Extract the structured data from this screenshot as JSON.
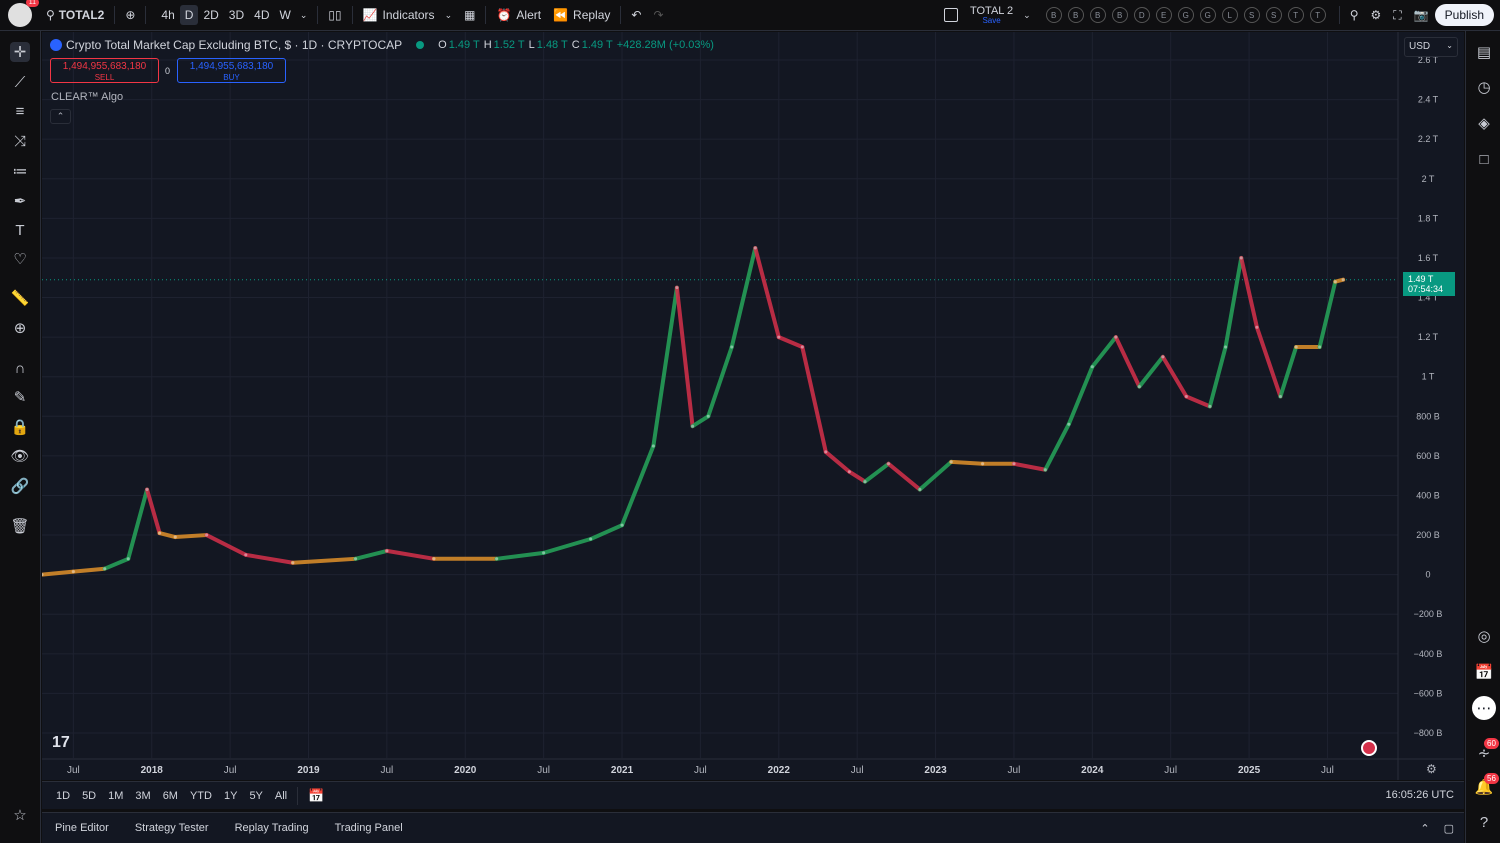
{
  "topbar": {
    "notification_count": "11",
    "symbol": "TOTAL2",
    "intervals": [
      "4h",
      "D",
      "2D",
      "3D",
      "4D",
      "W"
    ],
    "active_interval": "D",
    "indicators_label": "Indicators",
    "alert_label": "Alert",
    "replay_label": "Replay",
    "layout_name": "TOTAL 2",
    "layout_status": "Save",
    "watch_circles": [
      "B",
      "B",
      "B",
      "B",
      "D",
      "E",
      "G",
      "G",
      "L",
      "S",
      "S",
      "T",
      "T"
    ],
    "publish_label": "Publish"
  },
  "legend": {
    "title": "Crypto Total Market Cap Excluding BTC, $ · 1D · CRYPTOCAP",
    "o_label": "O",
    "o_value": "1.49 T",
    "h_label": "H",
    "h_value": "1.52 T",
    "l_label": "L",
    "l_value": "1.48 T",
    "c_label": "C",
    "c_value": "1.49 T",
    "change": "+428.28M (+0.03%)"
  },
  "trade": {
    "sell_price": "1,494,955,683,180",
    "sell_label": "SELL",
    "spread": "0",
    "buy_price": "1,494,955,683,180",
    "buy_label": "BUY"
  },
  "indicator_name": "CLEAR™ Algo",
  "currency": "USD",
  "last_price": {
    "value": "1.49 T",
    "countdown": "07:54:34"
  },
  "chart_data": {
    "type": "line",
    "title": "Crypto Total Market Cap Excluding BTC, $ · 1D · CRYPTOCAP",
    "y_unit": "USD",
    "y_ticks": [
      "2.6 T",
      "2.4 T",
      "2.2 T",
      "2 T",
      "1.8 T",
      "1.6 T",
      "1.4 T",
      "1.2 T",
      "1 T",
      "800 B",
      "600 B",
      "400 B",
      "200 B",
      "0",
      "−200 B",
      "−400 B",
      "−600 B",
      "−800 B"
    ],
    "x_ticks": [
      "Jul",
      "2018",
      "Jul",
      "2019",
      "Jul",
      "2020",
      "Jul",
      "2021",
      "Jul",
      "2022",
      "Jul",
      "2023",
      "Jul",
      "2024",
      "Jul",
      "2025",
      "Jul"
    ],
    "ylim": [
      -880000000000,
      2600000000000
    ],
    "xlim": [
      2017.3,
      2025.95
    ],
    "x": [
      2017.3,
      2017.5,
      2017.7,
      2017.85,
      2017.97,
      2018.05,
      2018.15,
      2018.35,
      2018.6,
      2018.9,
      2019.3,
      2019.5,
      2019.8,
      2020.2,
      2020.5,
      2020.8,
      2021.0,
      2021.2,
      2021.35,
      2021.45,
      2021.55,
      2021.7,
      2021.85,
      2022.0,
      2022.15,
      2022.3,
      2022.45,
      2022.55,
      2022.7,
      2022.9,
      2023.1,
      2023.3,
      2023.5,
      2023.7,
      2023.85,
      2024.0,
      2024.15,
      2024.3,
      2024.45,
      2024.6,
      2024.75,
      2024.85,
      2024.95,
      2025.05,
      2025.2,
      2025.3,
      2025.45,
      2025.55,
      2025.6
    ],
    "values": [
      0,
      15000000000,
      30000000000,
      80000000000,
      430000000000,
      210000000000,
      190000000000,
      200000000000,
      100000000000,
      60000000000,
      80000000000,
      120000000000,
      80000000000,
      80000000000,
      110000000000,
      180000000000,
      250000000000,
      650000000000,
      1450000000000,
      750000000000,
      800000000000,
      1150000000000,
      1650000000000,
      1200000000000,
      1150000000000,
      620000000000,
      520000000000,
      470000000000,
      560000000000,
      430000000000,
      570000000000,
      560000000000,
      560000000000,
      530000000000,
      760000000000,
      1050000000000,
      1200000000000,
      950000000000,
      1100000000000,
      900000000000,
      850000000000,
      1150000000000,
      1600000000000,
      1250000000000,
      900000000000,
      1150000000000,
      1150000000000,
      1480000000000,
      1490000000000
    ],
    "trend_colors": {
      "up": "#26a65b",
      "down": "#d5304a",
      "neutral": "#e0902a"
    },
    "last_price_color": "#089981"
  },
  "range_buttons": [
    "1D",
    "5D",
    "1M",
    "3M",
    "6M",
    "YTD",
    "1Y",
    "5Y",
    "All"
  ],
  "clock": "16:05:26 UTC",
  "bottom_tabs": [
    "Pine Editor",
    "Strategy Tester",
    "Replay Trading",
    "Trading Panel"
  ],
  "right_badges": [
    "60",
    "56"
  ],
  "left_tool_icons": [
    "crosshair-icon",
    "trendline-icon",
    "fib-icon",
    "pattern-icon",
    "forecast-icon",
    "brush-icon",
    "text-icon",
    "heart-icon",
    "ruler-icon",
    "zoom-icon",
    "magnet-icon",
    "lock-drawing-icon",
    "lock-icon",
    "eye-icon",
    "link-icon",
    "trash-icon",
    "star-icon"
  ],
  "right_tool_icons": [
    "watchlist-icon",
    "alerts-icon",
    "layers-icon",
    "chat-icon",
    "target-icon",
    "calendar-icon",
    "apps-icon",
    "signal-icon",
    "notification-icon",
    "help-icon"
  ]
}
